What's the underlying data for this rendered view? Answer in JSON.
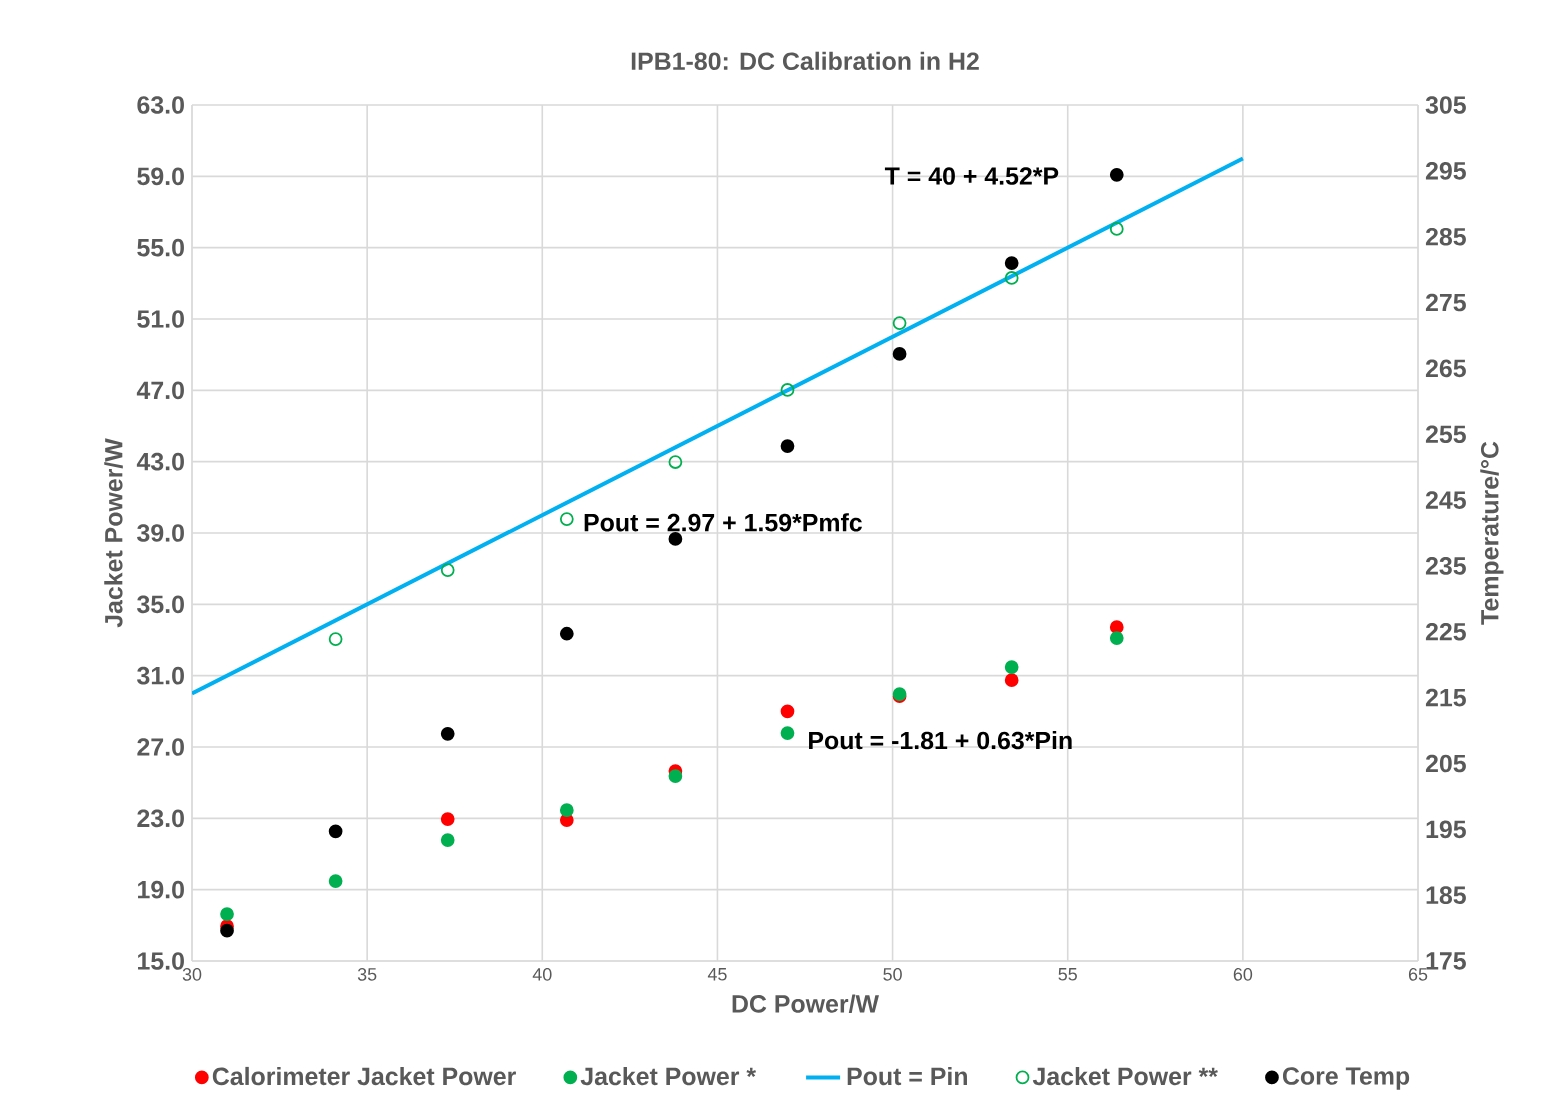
{
  "chart_data": {
    "type": "scatter",
    "title": "IPB1-80: DC Calibration in H2",
    "xlabel": "DC Power/W",
    "ylabel": "Jacket Power/W",
    "y2label": "Temperature/°C",
    "x": [
      31.0,
      34.1,
      37.3,
      40.7,
      43.8,
      47.0,
      50.2,
      53.4,
      56.4
    ],
    "series": [
      {
        "name": "Calorimeter Jacket Power",
        "color": "#ff0000",
        "marker": "circle",
        "values": [
          16.95,
          null,
          22.96,
          22.9,
          25.65,
          29.0,
          29.85,
          30.75,
          33.72
        ]
      },
      {
        "name": "Jacket Power *",
        "color": "#00b050",
        "marker": "circle",
        "values": [
          17.63,
          19.48,
          21.78,
          23.46,
          25.37,
          27.78,
          29.97,
          31.48,
          33.11
        ]
      },
      {
        "name": "Pout = Pin",
        "type": "line",
        "color": "#00b0f0",
        "marker": "none",
        "x": [
          30,
          60
        ],
        "values": [
          30,
          60
        ]
      },
      {
        "name": "Jacket Power **",
        "color": "#00b050",
        "marker": "open circle",
        "x": [
          34.1,
          37.3,
          40.7,
          43.8,
          47.0,
          50.2,
          53.4,
          56.4
        ],
        "values": [
          33.05,
          36.92,
          39.78,
          42.98,
          47.02,
          50.77,
          53.3,
          56.05
        ]
      },
      {
        "name": "Core Temp",
        "color": "#000000",
        "marker": "circle",
        "axis": "y2",
        "values": [
          179.6,
          194.7,
          209.5,
          224.7,
          239.1,
          253.2,
          267.2,
          281.0,
          294.4
        ]
      }
    ],
    "annotations": [
      "T = 40 + 4.52*P",
      "Pout = 2.97 + 1.59*Pmfc",
      "Pout = -1.81 + 0.63*Pin"
    ],
    "xlim": [
      30,
      65
    ],
    "xticks": [
      30,
      35,
      40,
      45,
      50,
      55,
      60,
      65
    ],
    "ylim": [
      15,
      63
    ],
    "yticks": [
      {
        "value": 15,
        "label": "15.0"
      },
      {
        "value": 19,
        "label": "19.0"
      },
      {
        "value": 23,
        "label": "23.0"
      },
      {
        "value": 27,
        "label": "27.0"
      },
      {
        "value": 31,
        "label": "31.0"
      },
      {
        "value": 35,
        "label": "35.0"
      },
      {
        "value": 39,
        "label": "39.0"
      },
      {
        "value": 43,
        "label": "43.0"
      },
      {
        "value": 47,
        "label": "47.0"
      },
      {
        "value": 51,
        "label": "51.0"
      },
      {
        "value": 55,
        "label": "55.0"
      },
      {
        "value": 59,
        "label": "59.0"
      },
      {
        "value": 63,
        "label": "63.0"
      }
    ],
    "y2lim": [
      175,
      305
    ],
    "y2ticks": [
      175,
      185,
      195,
      205,
      215,
      225,
      235,
      245,
      255,
      265,
      275,
      285,
      295,
      305
    ],
    "grid": true,
    "legend": "bottom"
  }
}
